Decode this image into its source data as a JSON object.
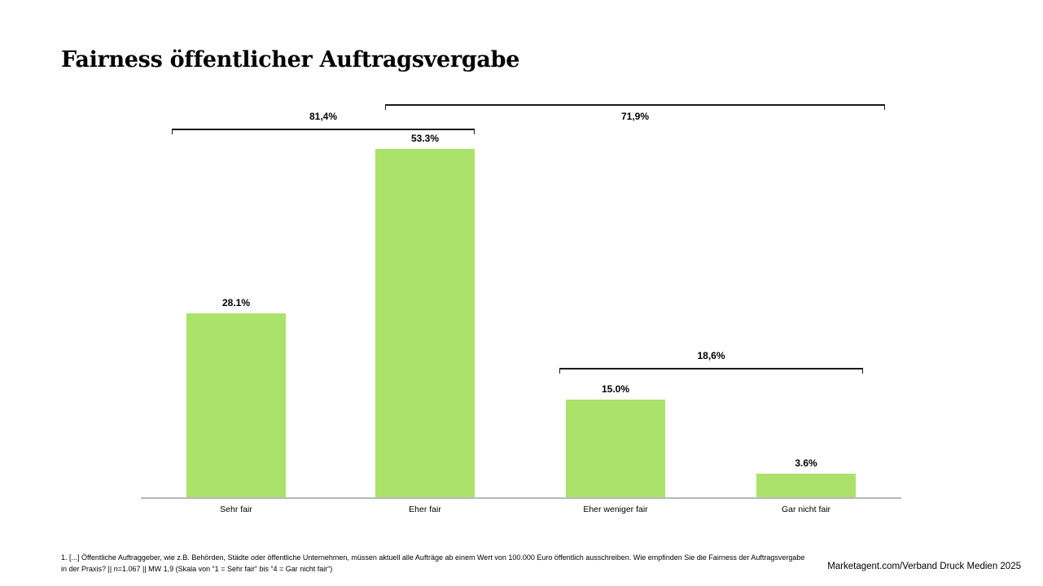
{
  "title": "Fairness öffentlicher Auftragsvergabe",
  "chart_data": {
    "type": "bar",
    "title": "Fairness öffentlicher Auftragsvergabe",
    "categories": [
      "Sehr fair",
      "Eher fair",
      "Eher weniger fair",
      "Gar nicht fair"
    ],
    "values": [
      28.1,
      53.3,
      15.0,
      3.6
    ],
    "value_labels": [
      "28.1%",
      "53.3%",
      "15.0%",
      "3.6%"
    ],
    "bar_color": "#abe26a",
    "axis_color": "#b9b9b9",
    "xlabel": "",
    "ylabel": "",
    "ylim": [
      0,
      60
    ],
    "grid": false,
    "legend": false,
    "brackets": [
      {
        "label": "81,4%",
        "span": "Sehr fair + Eher fair",
        "value": 81.4,
        "label_position": "above"
      },
      {
        "label": "71,9%",
        "span": "Eher fair + Eher weniger fair + Gar nicht fair",
        "value": 71.9,
        "label_position": "below"
      },
      {
        "label": "18,6%",
        "span": "Eher weniger fair + Gar nicht fair",
        "value": 18.6,
        "label_position": "above"
      }
    ]
  },
  "footnote": {
    "line1": "1. [...] Öffentliche Auftraggeber, wie z.B. Behörden, Städte oder öffentliche Unternehmen, müssen aktuell alle Aufträge ab einem Wert von 100.000 Euro öffentlich ausschreiben. Wie empfinden Sie die Fairness der Auftragsvergabe",
    "line2": "in der Praxis? || n=1.067 || MW 1,9 (Skala von “1 = Sehr fair“ bis “4 = Gar nicht fair“)"
  },
  "attribution": "Marketagent.com/Verband Druck Medien 2025"
}
